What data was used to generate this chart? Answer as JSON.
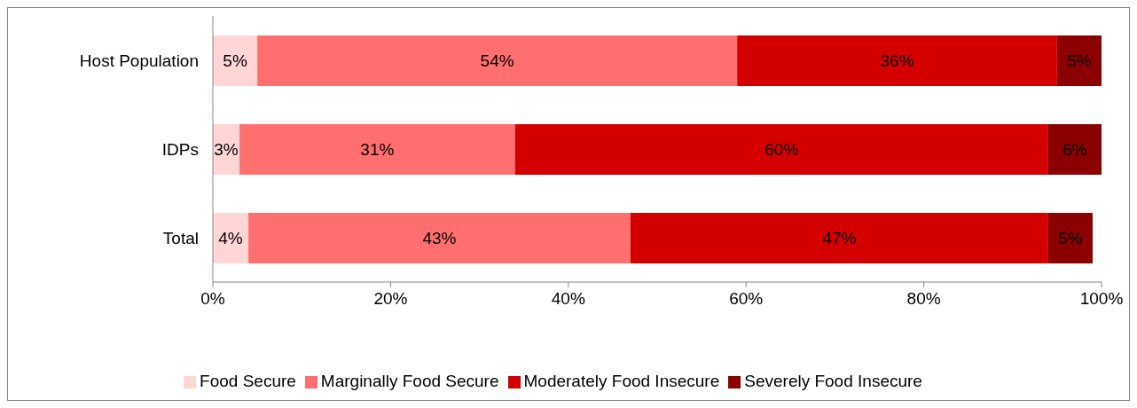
{
  "chart_data": {
    "type": "bar",
    "orientation": "horizontal",
    "stacked": true,
    "categories": [
      "Host Population",
      "IDPs",
      "Total"
    ],
    "series": [
      {
        "name": "Food Secure",
        "color": "#ffd5d5",
        "values": [
          5,
          3,
          4
        ],
        "value_labels": [
          "5%",
          "3%",
          "4%"
        ]
      },
      {
        "name": "Marginally Food Secure",
        "color": "#ff6f6f",
        "values": [
          54,
          31,
          43
        ],
        "value_labels": [
          "54%",
          "31%",
          "43%"
        ]
      },
      {
        "name": "Moderately Food Insecure",
        "color": "#d40000",
        "values": [
          36,
          60,
          47
        ],
        "value_labels": [
          "36%",
          "60%",
          "47%"
        ]
      },
      {
        "name": "Severely Food Insecure",
        "color": "#8b0000",
        "values": [
          5,
          6,
          5
        ],
        "value_labels": [
          "5%",
          "6%",
          "5%"
        ]
      }
    ],
    "xlim": [
      0,
      100
    ],
    "xticks": [
      {
        "value": 0,
        "label": "0%"
      },
      {
        "value": 20,
        "label": "20%"
      },
      {
        "value": 40,
        "label": "40%"
      },
      {
        "value": 60,
        "label": "60%"
      },
      {
        "value": 80,
        "label": "80%"
      },
      {
        "value": 100,
        "label": "100%"
      }
    ],
    "grid": false,
    "legend": "bottom"
  }
}
